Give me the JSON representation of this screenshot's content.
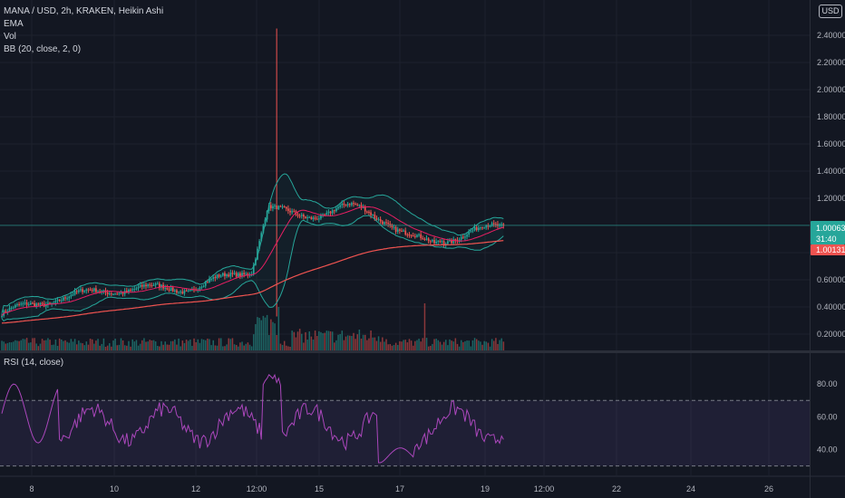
{
  "legend": {
    "symbol": "MANA / USD, 2h, KRAKEN, Heikin Ashi",
    "ema": "EMA",
    "vol": "Vol",
    "bb": "BB (20, close, 2, 0)",
    "rsi": "RSI (14, close)"
  },
  "currency_badge": "USD",
  "price_axis": {
    "top_label": "2",
    "ticks": [
      "2.40000",
      "2.20000",
      "2.00000",
      "1.80000",
      "1.60000",
      "1.40000",
      "1.20000",
      "1.00000",
      "0.80000",
      "0.60000",
      "0.40000",
      "0.20000"
    ],
    "last_price_label": "1.00063",
    "countdown_label": "31:40",
    "other_price_label": "1.00131"
  },
  "rsi_axis": {
    "ticks": [
      "80.00",
      "60.00",
      "40.00"
    ]
  },
  "time_axis": {
    "ticks": [
      "8",
      "10",
      "12",
      "12:00",
      "15",
      "17",
      "19",
      "12:00",
      "22",
      "24",
      "26"
    ]
  },
  "colors": {
    "background": "#131722",
    "up": "#26a69a",
    "down": "#ef5350",
    "rsi_line": "#ab47bc",
    "bollinger": "#26a69a",
    "ema": "#ef5350",
    "basis": "#e91e63"
  },
  "chart_data": {
    "type": "candlestick",
    "title": "MANA / USD, 2h, KRAKEN, Heikin Ashi",
    "price_range": [
      0.1,
      2.5
    ],
    "rsi_range": [
      30,
      90
    ],
    "price_anchors_x_bars": [
      0,
      30,
      60,
      100,
      130,
      138,
      160,
      200,
      225,
      260
    ],
    "price_anchors_y": [
      0.35,
      0.47,
      0.53,
      0.54,
      0.68,
      1.12,
      1.12,
      1.05,
      0.88,
      1.0
    ],
    "spike_high": 2.45,
    "rsi_overbought": 70,
    "rsi_oversold": 30
  }
}
